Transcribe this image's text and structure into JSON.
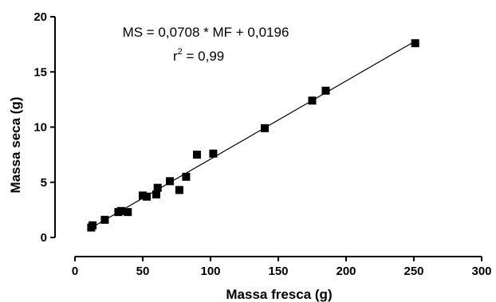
{
  "chart_data": {
    "type": "scatter",
    "xlabel": "Massa fresca (g)",
    "ylabel": "Massa seca (g)",
    "xlim": [
      0,
      300
    ],
    "ylim": [
      0,
      20
    ],
    "xticks": [
      0,
      50,
      100,
      150,
      200,
      250,
      300
    ],
    "yticks": [
      0,
      5,
      10,
      15,
      20
    ],
    "xtick_labels": [
      "0",
      "50",
      "100",
      "150",
      "200",
      "250",
      "300"
    ],
    "ytick_labels": [
      "0",
      "5",
      "10",
      "15",
      "20"
    ],
    "grid": false,
    "equation": "MS = 0,0708 * MF + 0,0196",
    "r2_prefix": "r",
    "r2_exponent": "2",
    "r2_value": " = 0,99",
    "fit": {
      "slope": 0.0708,
      "intercept": 0.0196,
      "x_range": [
        12,
        251
      ]
    },
    "points": [
      {
        "x": 12,
        "y": 0.9
      },
      {
        "x": 13,
        "y": 1.1
      },
      {
        "x": 22,
        "y": 1.6
      },
      {
        "x": 32,
        "y": 2.3
      },
      {
        "x": 34,
        "y": 2.4
      },
      {
        "x": 39,
        "y": 2.3
      },
      {
        "x": 50,
        "y": 3.8
      },
      {
        "x": 53,
        "y": 3.7
      },
      {
        "x": 60,
        "y": 3.9
      },
      {
        "x": 61,
        "y": 4.5
      },
      {
        "x": 70,
        "y": 5.1
      },
      {
        "x": 77,
        "y": 4.3
      },
      {
        "x": 82,
        "y": 5.5
      },
      {
        "x": 90,
        "y": 7.5
      },
      {
        "x": 102,
        "y": 7.6
      },
      {
        "x": 140,
        "y": 9.9
      },
      {
        "x": 175,
        "y": 12.4
      },
      {
        "x": 185,
        "y": 13.3
      },
      {
        "x": 251,
        "y": 17.6
      }
    ],
    "marker": "square",
    "color": "#000000"
  }
}
